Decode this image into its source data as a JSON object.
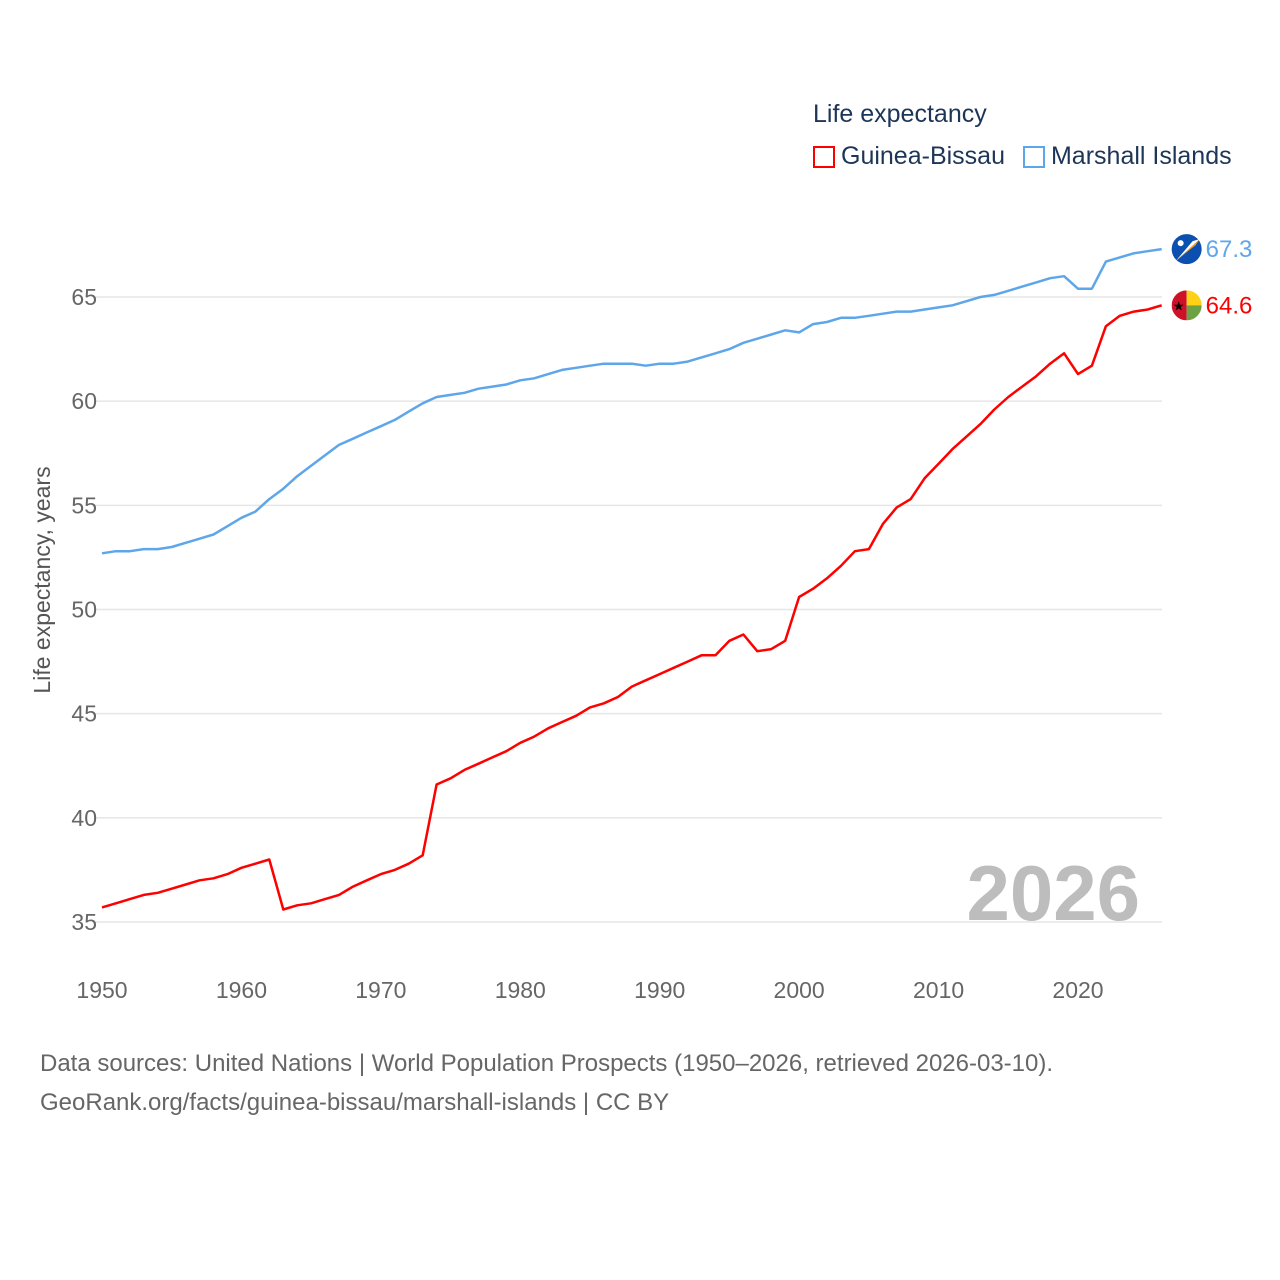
{
  "chart_data": {
    "type": "line",
    "title": "Life expectancy",
    "xlabel": "",
    "ylabel": "Life expectancy, years",
    "xlim": [
      1950,
      2026
    ],
    "ylim": [
      33,
      68
    ],
    "x_ticks": [
      "1950",
      "1960",
      "1970",
      "1980",
      "1990",
      "2000",
      "2010",
      "2020"
    ],
    "y_ticks": [
      "35",
      "40",
      "45",
      "50",
      "55",
      "60",
      "65"
    ],
    "grid": true,
    "legend_placement": "top-right",
    "year_label": "2026",
    "x": [
      1950,
      1951,
      1952,
      1953,
      1954,
      1955,
      1956,
      1957,
      1958,
      1959,
      1960,
      1961,
      1962,
      1963,
      1964,
      1965,
      1966,
      1967,
      1968,
      1969,
      1970,
      1971,
      1972,
      1973,
      1974,
      1975,
      1976,
      1977,
      1978,
      1979,
      1980,
      1981,
      1982,
      1983,
      1984,
      1985,
      1986,
      1987,
      1988,
      1989,
      1990,
      1991,
      1992,
      1993,
      1994,
      1995,
      1996,
      1997,
      1998,
      1999,
      2000,
      2001,
      2002,
      2003,
      2004,
      2005,
      2006,
      2007,
      2008,
      2009,
      2010,
      2011,
      2012,
      2013,
      2014,
      2015,
      2016,
      2017,
      2018,
      2019,
      2020,
      2021,
      2022,
      2023,
      2024,
      2025,
      2026
    ],
    "series": [
      {
        "name": "Guinea-Bissau",
        "color": "#ff0000",
        "end_label": "64.6",
        "flag": "guinea-bissau-flag",
        "values": [
          35.7,
          35.9,
          36.1,
          36.3,
          36.4,
          36.6,
          36.8,
          37.0,
          37.1,
          37.3,
          37.6,
          37.8,
          38.0,
          35.6,
          35.8,
          35.9,
          36.1,
          36.3,
          36.7,
          37.0,
          37.3,
          37.5,
          37.8,
          38.2,
          41.6,
          41.9,
          42.3,
          42.6,
          42.9,
          43.2,
          43.6,
          43.9,
          44.3,
          44.6,
          44.9,
          45.3,
          45.5,
          45.8,
          46.3,
          46.6,
          46.9,
          47.2,
          47.5,
          47.8,
          47.8,
          48.5,
          48.8,
          48.0,
          48.1,
          48.5,
          50.6,
          51.0,
          51.5,
          52.1,
          52.8,
          52.9,
          54.1,
          54.9,
          55.3,
          56.3,
          57.0,
          57.7,
          58.3,
          58.9,
          59.6,
          60.2,
          60.7,
          61.2,
          61.8,
          62.3,
          61.3,
          61.7,
          63.6,
          64.1,
          64.3,
          64.4,
          64.6
        ]
      },
      {
        "name": "Marshall Islands",
        "color": "#5ea6ea",
        "end_label": "67.3",
        "flag": "marshall-islands-flag",
        "values": [
          52.7,
          52.8,
          52.8,
          52.9,
          52.9,
          53.0,
          53.2,
          53.4,
          53.6,
          54.0,
          54.4,
          54.7,
          55.3,
          55.8,
          56.4,
          56.9,
          57.4,
          57.9,
          58.2,
          58.5,
          58.8,
          59.1,
          59.5,
          59.9,
          60.2,
          60.3,
          60.4,
          60.6,
          60.7,
          60.8,
          61.0,
          61.1,
          61.3,
          61.5,
          61.6,
          61.7,
          61.8,
          61.8,
          61.8,
          61.7,
          61.8,
          61.8,
          61.9,
          62.1,
          62.3,
          62.5,
          62.8,
          63.0,
          63.2,
          63.4,
          63.3,
          63.7,
          63.8,
          64.0,
          64.0,
          64.1,
          64.2,
          64.3,
          64.3,
          64.4,
          64.5,
          64.6,
          64.8,
          65.0,
          65.1,
          65.3,
          65.5,
          65.7,
          65.9,
          66.0,
          65.4,
          65.4,
          66.7,
          66.9,
          67.1,
          67.2,
          67.3
        ]
      }
    ]
  },
  "source": {
    "line1": "Data sources: United Nations | World Population Prospects (1950–2026, retrieved 2026-03-10).",
    "line2": "GeoRank.org/facts/guinea-bissau/marshall-islands | CC BY"
  }
}
